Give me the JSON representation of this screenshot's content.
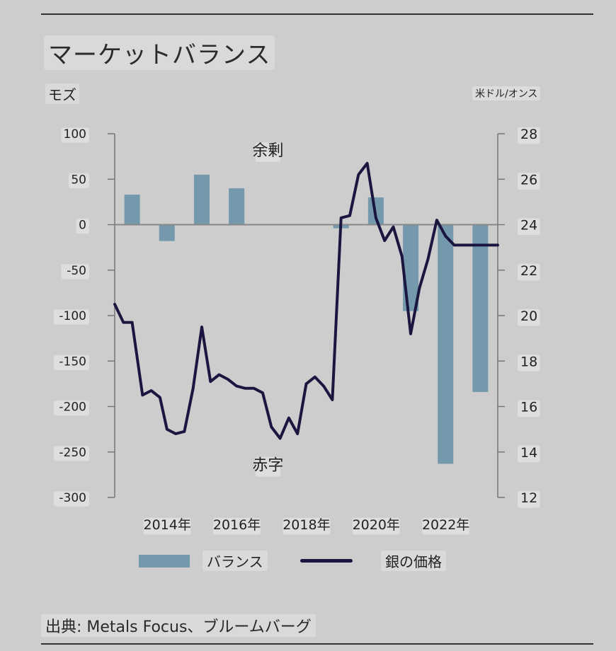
{
  "title": "マーケットバランス",
  "source": "出典: Metals Focus、ブルームバーグ",
  "legend": {
    "bar": "バランス",
    "line": "銀の価格"
  },
  "colors": {
    "bar": "#7499ad",
    "line": "#1b1640",
    "axis": "#777777",
    "zero": "#888888"
  },
  "chart_data": {
    "type": "bar+line",
    "y_left": {
      "label": "モズ",
      "range": [
        -300,
        100
      ],
      "ticks": [
        "100",
        "50",
        "0",
        "-50",
        "-100",
        "-150",
        "-200",
        "-250",
        "-300"
      ],
      "tick_values": [
        100,
        50,
        0,
        -50,
        -100,
        -150,
        -200,
        -250,
        -300
      ]
    },
    "y_right": {
      "label": "米ドル/オンス",
      "range": [
        12,
        28
      ],
      "ticks": [
        "28",
        "26",
        "24",
        "22",
        "20",
        "18",
        "16",
        "14",
        "12"
      ],
      "tick_values": [
        28,
        26,
        24,
        22,
        20,
        18,
        16,
        14,
        12
      ]
    },
    "x_range": [
      2013.0,
      2024.0
    ],
    "x_ticks": [
      {
        "value": 2014.0,
        "label": "2014年"
      },
      {
        "value": 2016.0,
        "label": "2016年"
      },
      {
        "value": 2018.0,
        "label": "2018年"
      },
      {
        "value": 2020.0,
        "label": "2020年"
      },
      {
        "value": 2022.0,
        "label": "2022年"
      }
    ],
    "annotations": [
      {
        "text": "余剰",
        "x": 2017.4,
        "y_left": 82
      },
      {
        "text": "赤字",
        "x": 2017.4,
        "y_left": -264
      }
    ],
    "bars": {
      "name": "バランス",
      "categories": [
        2013,
        2014,
        2015,
        2016,
        2017,
        2018,
        2019,
        2020,
        2021,
        2022,
        2023
      ],
      "x": [
        2013.5,
        2014.5,
        2015.5,
        2016.5,
        2017.5,
        2018.5,
        2019.5,
        2020.5,
        2021.5,
        2022.5,
        2023.5
      ],
      "values": [
        33,
        -18,
        55,
        40,
        0,
        0,
        -4,
        30,
        -95,
        -263,
        -184
      ]
    },
    "line": {
      "name": "銀の価格",
      "x": [
        2013.0,
        2013.25,
        2013.5,
        2013.8,
        2014.05,
        2014.3,
        2014.5,
        2014.75,
        2015.0,
        2015.25,
        2015.5,
        2015.75,
        2016.0,
        2016.25,
        2016.5,
        2016.75,
        2017.0,
        2017.25,
        2017.5,
        2017.75,
        2018.0,
        2018.25,
        2018.5,
        2018.75,
        2019.0,
        2019.25,
        2019.5,
        2019.75,
        2020.0,
        2020.25,
        2020.5,
        2020.75,
        2021.0,
        2021.25,
        2021.5,
        2021.75,
        2022.0,
        2022.25,
        2022.5,
        2022.75,
        2023.0,
        2023.25,
        2023.5,
        2023.75,
        2024.0
      ],
      "values": [
        20.5,
        19.7,
        19.7,
        16.5,
        16.7,
        16.4,
        15.0,
        14.8,
        14.9,
        16.8,
        19.5,
        17.1,
        17.4,
        17.2,
        16.9,
        16.8,
        16.8,
        16.6,
        15.1,
        14.6,
        15.5,
        14.8,
        17.0,
        17.3,
        16.9,
        16.3,
        24.3,
        24.4,
        26.2,
        26.7,
        24.3,
        23.3,
        23.9,
        22.6,
        19.2,
        21.2,
        22.5,
        24.2,
        23.5,
        23.1,
        23.1,
        23.1,
        23.1,
        23.1,
        23.1
      ]
    }
  }
}
